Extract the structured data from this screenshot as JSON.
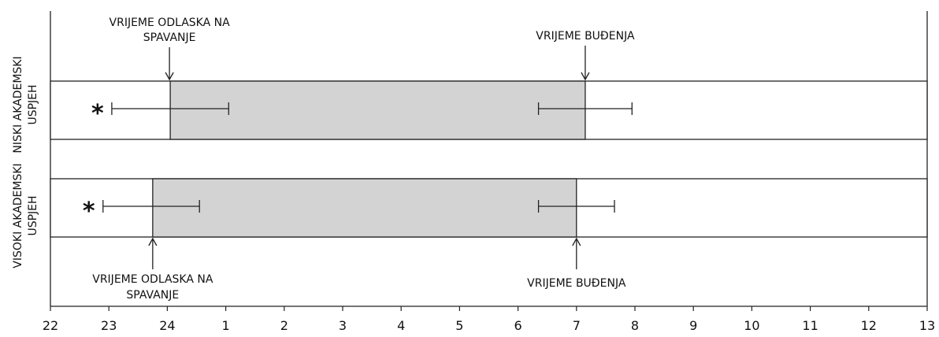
{
  "chart_data": {
    "type": "bar",
    "orientation": "horizontal",
    "xlim": [
      22,
      37
    ],
    "x_tick_labels": [
      "22",
      "23",
      "24",
      "1",
      "2",
      "3",
      "4",
      "5",
      "6",
      "7",
      "8",
      "9",
      "10",
      "11",
      "12",
      "13"
    ],
    "grid": false,
    "legend": "none",
    "bar_color": "#d3d3d3",
    "groups": [
      {
        "label": "NISKI AKADEMSKI USPJEH",
        "marker": "*",
        "bedtime": 24.05,
        "bedtime_error": [
          23.05,
          25.05
        ],
        "waketime": 31.15,
        "waketime_error": [
          30.35,
          31.95
        ],
        "bedtime_annotation": "VRIJEME ODLASKA NA SPAVANJE",
        "waketime_annotation": "VRIJEME BUĐENJA"
      },
      {
        "label": "VISOKI AKADEMSKI USPJEH",
        "marker": "*",
        "bedtime": 23.75,
        "bedtime_error": [
          22.9,
          24.55
        ],
        "waketime": 31.0,
        "waketime_error": [
          30.35,
          31.65
        ],
        "bedtime_annotation": "VRIJEME ODLASKA NA SPAVANJE",
        "waketime_annotation": "VRIJEME BUĐENJA"
      }
    ]
  }
}
